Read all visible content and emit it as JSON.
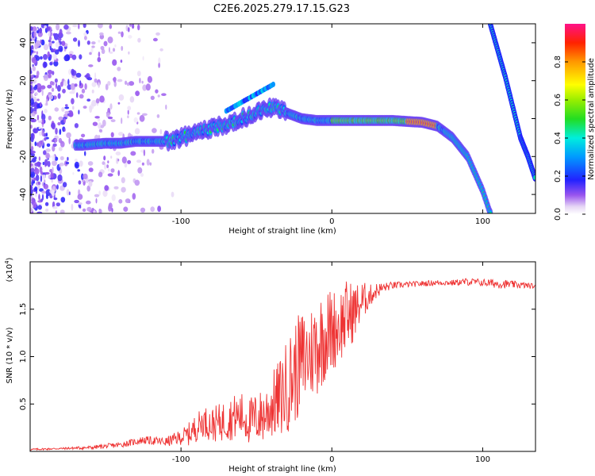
{
  "title": "C2E6.2025.279.17.15.G23",
  "chart_data": [
    {
      "type": "heatmap",
      "xlabel": "Height of straight line (km)",
      "ylabel": "Frequency (Hz)",
      "xlim": [
        -200,
        135
      ],
      "ylim": [
        -50,
        50
      ],
      "xticks": [
        -100,
        0,
        100
      ],
      "yticks": [
        -40,
        -20,
        0,
        20,
        40
      ],
      "colorbar": {
        "label": "Normalized spectral amplitude",
        "range": [
          0,
          1
        ],
        "ticks": [
          0.0,
          0.2,
          0.4,
          0.6,
          0.8
        ]
      },
      "ridge": {
        "x": [
          -165,
          -150,
          -140,
          -130,
          -120,
          -110,
          -100,
          -90,
          -80,
          -70,
          -60,
          -50,
          -40,
          -30,
          -20,
          -10,
          0,
          20,
          40,
          60,
          70,
          80,
          90,
          100,
          105
        ],
        "freq": [
          -14,
          -13,
          -13,
          -12,
          -12,
          -12,
          -10,
          -8,
          -5,
          -3,
          0,
          3,
          6,
          3,
          0,
          -1,
          -1,
          -1,
          -1,
          -2,
          -4,
          -10,
          -20,
          -38,
          -50
        ]
      },
      "aliased_branch": {
        "x": [
          105,
          110,
          115,
          120,
          125,
          130,
          135
        ],
        "freq": [
          50,
          36,
          22,
          6,
          -10,
          -20,
          -32
        ]
      }
    },
    {
      "type": "line",
      "xlabel": "Height of straight line (km)",
      "ylabel": "SNR (10 * v/v)",
      "scale_label": "(x10",
      "scale_exp": "4",
      "xlim": [
        -200,
        135
      ],
      "ylim": [
        0,
        2.0
      ],
      "xticks": [
        -100,
        0,
        100
      ],
      "yticks": [
        0.5,
        1.0,
        1.5
      ],
      "ytick_labels": [
        "0.5",
        "1.0",
        "1.5"
      ],
      "series": [
        {
          "name": "SNR",
          "color": "#ee3333",
          "x": [
            -200,
            -180,
            -160,
            -140,
            -125,
            -110,
            -100,
            -95,
            -90,
            -85,
            -80,
            -75,
            -70,
            -65,
            -60,
            -55,
            -50,
            -45,
            -40,
            -35,
            -30,
            -25,
            -20,
            -15,
            -10,
            -5,
            0,
            5,
            10,
            15,
            20,
            25,
            30,
            35,
            40,
            50,
            60,
            70,
            80,
            90,
            100,
            110,
            120,
            130,
            135
          ],
          "y": [
            0.02,
            0.03,
            0.04,
            0.07,
            0.12,
            0.1,
            0.15,
            0.18,
            0.25,
            0.32,
            0.28,
            0.3,
            0.33,
            0.36,
            0.38,
            0.32,
            0.35,
            0.38,
            0.48,
            0.55,
            0.68,
            0.82,
            0.95,
            1.02,
            1.12,
            1.22,
            1.28,
            1.33,
            1.42,
            1.48,
            1.58,
            1.64,
            1.7,
            1.73,
            1.75,
            1.76,
            1.77,
            1.78,
            1.78,
            1.79,
            1.78,
            1.77,
            1.76,
            1.75,
            1.74
          ],
          "noise_amp": [
            0.01,
            0.01,
            0.02,
            0.03,
            0.04,
            0.05,
            0.08,
            0.12,
            0.15,
            0.16,
            0.18,
            0.2,
            0.22,
            0.24,
            0.25,
            0.25,
            0.27,
            0.3,
            0.35,
            0.42,
            0.5,
            0.55,
            0.55,
            0.5,
            0.55,
            0.5,
            0.45,
            0.4,
            0.4,
            0.3,
            0.22,
            0.12,
            0.08,
            0.05,
            0.04,
            0.03,
            0.03,
            0.03,
            0.03,
            0.04,
            0.04,
            0.05,
            0.04,
            0.03,
            0.03
          ]
        }
      ]
    }
  ]
}
